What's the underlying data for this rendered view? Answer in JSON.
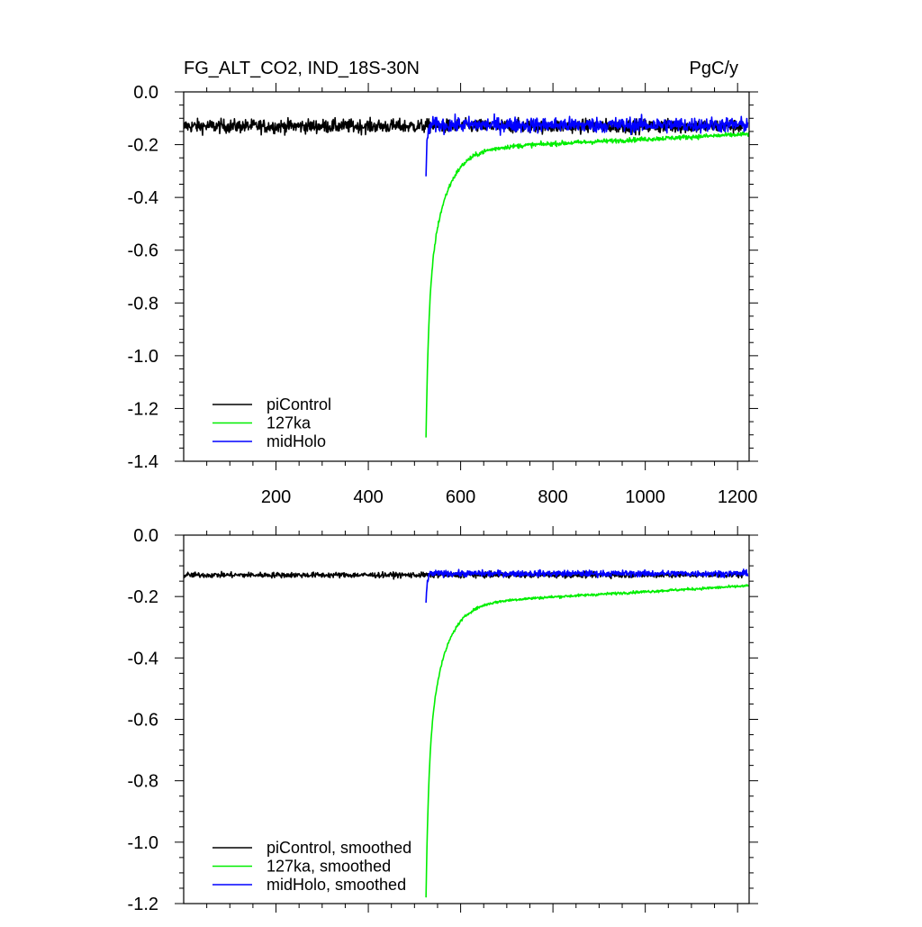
{
  "chart_data": [
    {
      "type": "line",
      "title": "FG_ALT_CO2, IND_18S-30N",
      "units": "PgC/y",
      "xlim": [
        0,
        1225
      ],
      "ylim": [
        -1.4,
        0.0
      ],
      "xticks": [
        200,
        400,
        600,
        800,
        1000,
        1200
      ],
      "xtick_labels": [
        "200",
        "400",
        "600",
        "800",
        "1000",
        "1200"
      ],
      "yticks": [
        0.0,
        -0.2,
        -0.4,
        -0.6,
        -0.8,
        -1.0,
        -1.2,
        -1.4
      ],
      "ytick_labels": [
        "0.0",
        "-0.2",
        "-0.4",
        "-0.6",
        "-0.8",
        "-1.0",
        "-1.2",
        "-1.4"
      ],
      "legend_position": "bottom-left",
      "series": [
        {
          "name": "piControl",
          "color": "#000000",
          "x_start": 1,
          "x_end": 1210,
          "mean": -0.13,
          "start_value": -0.14,
          "noise": 0.018
        },
        {
          "name": "127ka",
          "color": "#00ee00",
          "x_start": 525,
          "x_end": 1225,
          "start_value": -1.31,
          "end_value": -0.22,
          "noise": 0.006
        },
        {
          "name": "midHolo",
          "color": "#0000ff",
          "x_start": 525,
          "x_end": 1222,
          "start_value": -0.32,
          "mean": -0.125,
          "noise": 0.02
        }
      ]
    },
    {
      "type": "line",
      "title": "",
      "units": "",
      "xlim": [
        0,
        1225
      ],
      "ylim": [
        -1.2,
        0.0
      ],
      "xticks": [
        200,
        400,
        600,
        800,
        1000,
        1200
      ],
      "xtick_labels": [],
      "yticks": [
        0.0,
        -0.2,
        -0.4,
        -0.6,
        -0.8,
        -1.0,
        -1.2
      ],
      "ytick_labels": [
        "0.0",
        "-0.2",
        "-0.4",
        "-0.6",
        "-0.8",
        "-1.0",
        "-1.2"
      ],
      "legend_position": "bottom-left",
      "series": [
        {
          "name": "piControl, smoothed",
          "color": "#000000",
          "x_start": 1,
          "x_end": 1210,
          "mean": -0.13,
          "start_value": -0.14,
          "noise": 0.006
        },
        {
          "name": "127ka, smoothed",
          "color": "#00ee00",
          "x_start": 525,
          "x_end": 1225,
          "start_value": -1.18,
          "end_value": -0.225,
          "noise": 0.003
        },
        {
          "name": "midHolo, smoothed",
          "color": "#0000ff",
          "x_start": 525,
          "x_end": 1222,
          "start_value": -0.22,
          "mean": -0.125,
          "noise": 0.007
        }
      ]
    }
  ]
}
